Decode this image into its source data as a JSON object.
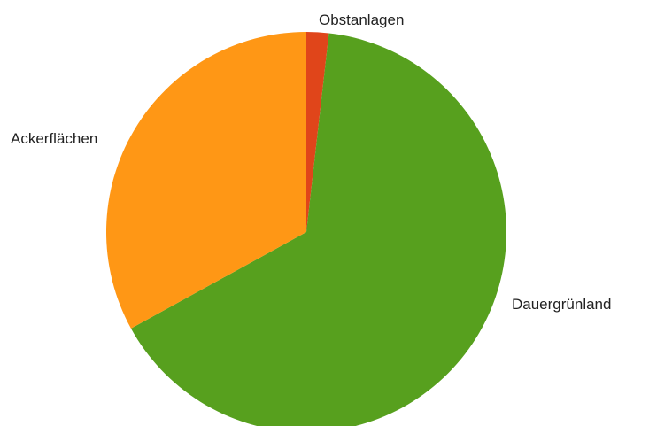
{
  "chart_data": {
    "type": "pie",
    "title": "",
    "slices": [
      {
        "label": "Obstanlagen",
        "value": 1.8,
        "color": "#e0451a"
      },
      {
        "label": "Dauergrünland",
        "value": 65.2,
        "color": "#57a01e"
      },
      {
        "label": "Ackerflächen",
        "value": 33.0,
        "color": "#ff9715"
      }
    ],
    "start_angle_deg": 0,
    "direction": "clockwise",
    "legend": "none"
  }
}
